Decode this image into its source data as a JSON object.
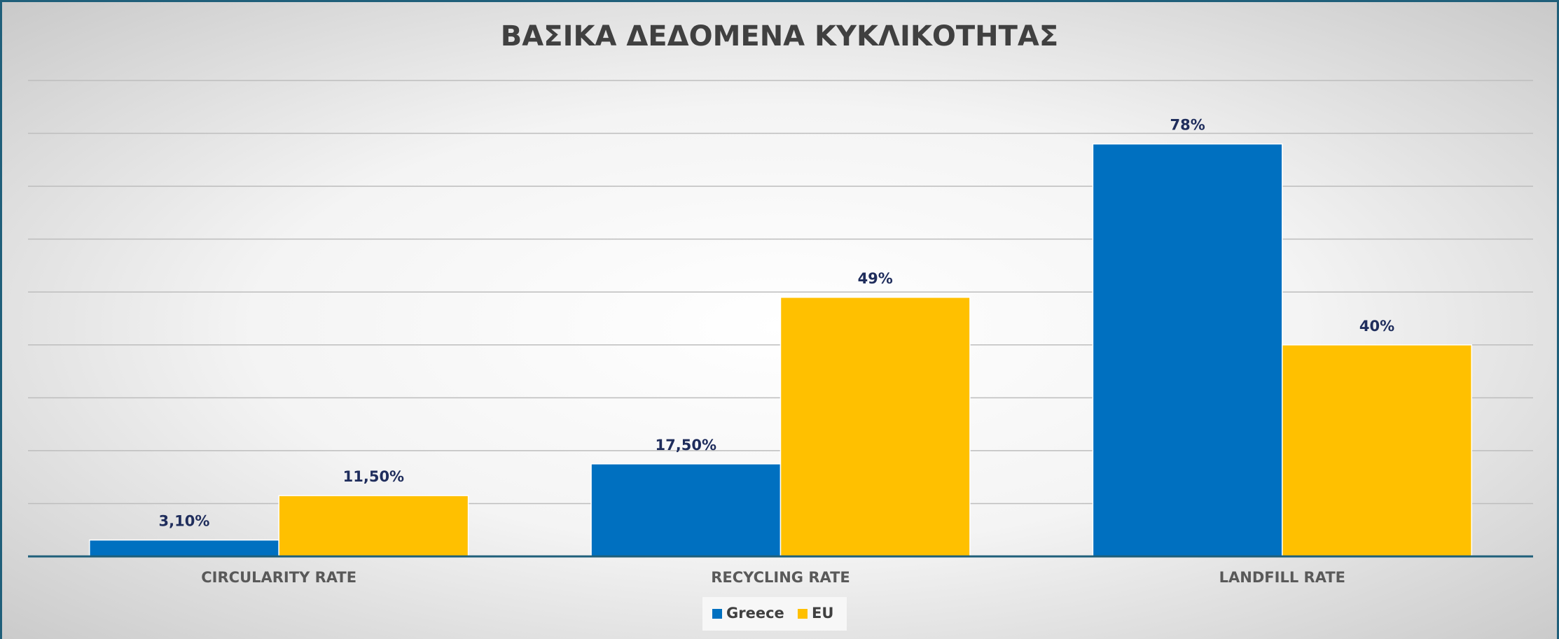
{
  "chart_data": {
    "type": "bar",
    "title": "ΒΑΣΙΚΑ ΔΕΔΟΜΕΝΑ ΚΥΚΛΙΚΟΤΗΤΑΣ",
    "categories": [
      "CIRCULARITY RATE",
      "RECYCLING RATE",
      "LANDFILL RATE"
    ],
    "series": [
      {
        "name": "Greece",
        "color": "#0070c0",
        "values": [
          3.1,
          17.5,
          78
        ],
        "value_labels": [
          "3,10%",
          "17,50%",
          "78%"
        ]
      },
      {
        "name": "EU",
        "color": "#ffc000",
        "values": [
          11.5,
          49,
          40
        ],
        "value_labels": [
          "11,50%",
          "49%",
          "40%"
        ]
      }
    ],
    "ylim": [
      0,
      90
    ],
    "yticks": [
      0,
      10,
      20,
      30,
      40,
      50,
      60,
      70,
      80,
      90
    ],
    "grid": true,
    "legend": "bottom"
  }
}
